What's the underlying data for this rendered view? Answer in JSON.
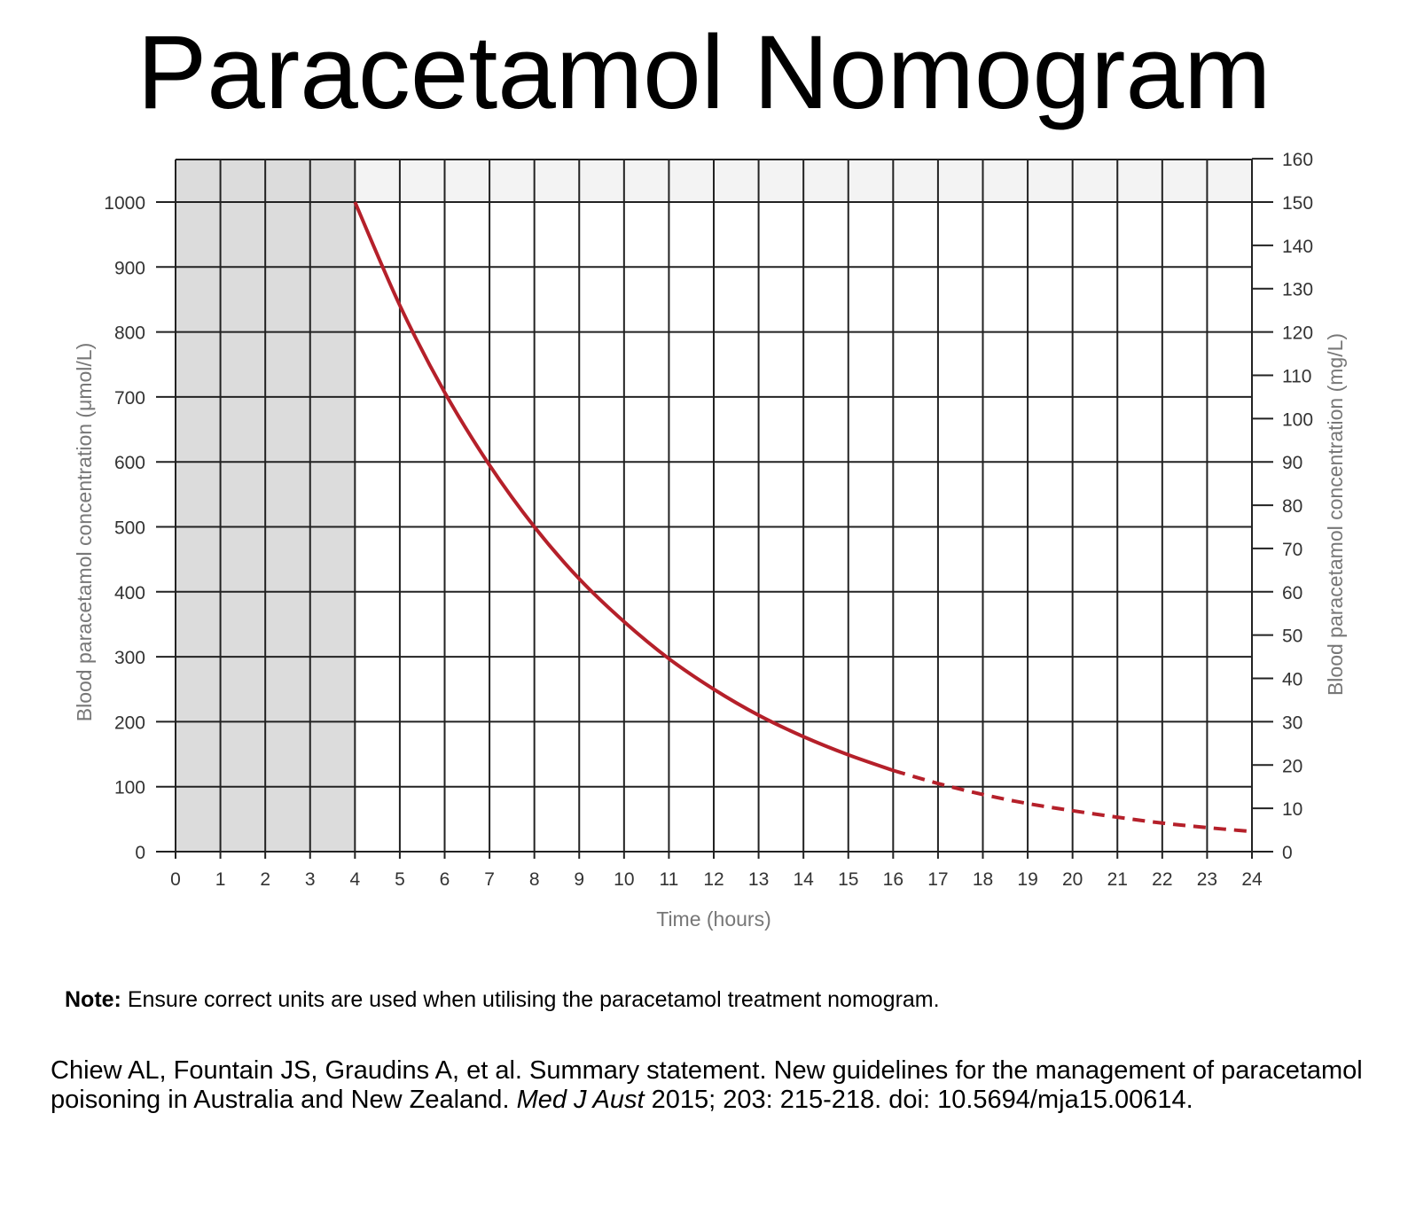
{
  "title": "Paracetamol Nomogram",
  "chart_data": {
    "type": "line",
    "xlabel": "Time (hours)",
    "ylabel_left": "Blood paracetamol concentration (μmol/L)",
    "ylabel_right": "Blood paracetamol concentration (mg/L)",
    "xlim": [
      0,
      24
    ],
    "ylim_left": [
      0,
      1000
    ],
    "ylim_right": [
      0,
      160
    ],
    "x_ticks": [
      0,
      1,
      2,
      3,
      4,
      5,
      6,
      7,
      8,
      9,
      10,
      11,
      12,
      13,
      14,
      15,
      16,
      17,
      18,
      19,
      20,
      21,
      22,
      23,
      24
    ],
    "y_ticks_left": [
      0,
      100,
      200,
      300,
      400,
      500,
      600,
      700,
      800,
      900,
      1000
    ],
    "y_ticks_right": [
      0,
      10,
      20,
      30,
      40,
      50,
      60,
      70,
      80,
      90,
      100,
      110,
      120,
      130,
      140,
      150,
      160
    ],
    "grid": true,
    "shaded_region_x": [
      0,
      4
    ],
    "series": [
      {
        "style": "solid",
        "color": "#b5202a",
        "x": [
          4,
          5,
          6,
          7,
          8,
          9,
          10,
          11,
          12,
          13,
          14,
          15,
          16
        ],
        "y": [
          1000,
          841,
          707,
          595,
          500,
          420,
          354,
          297,
          250,
          210,
          177,
          149,
          125
        ]
      },
      {
        "style": "dashed",
        "color": "#b5202a",
        "x": [
          16,
          17,
          18,
          19,
          20,
          21,
          22,
          23,
          24
        ],
        "y": [
          125,
          105,
          88,
          74,
          63,
          53,
          44,
          37,
          31
        ]
      }
    ]
  },
  "note": {
    "label": "Note:",
    "text": " Ensure correct units are used when utilising the paracetamol treatment nomogram."
  },
  "citation": {
    "part1": "Chiew AL, Fountain JS, Graudins A, et al. Summary statement. New guidelines for the management of paracetamol poisoning in Australia and New Zealand. ",
    "journal": "Med J Aust",
    "part2": " 2015; 203: 215-218. doi: 10.5694/mja15.00614."
  }
}
